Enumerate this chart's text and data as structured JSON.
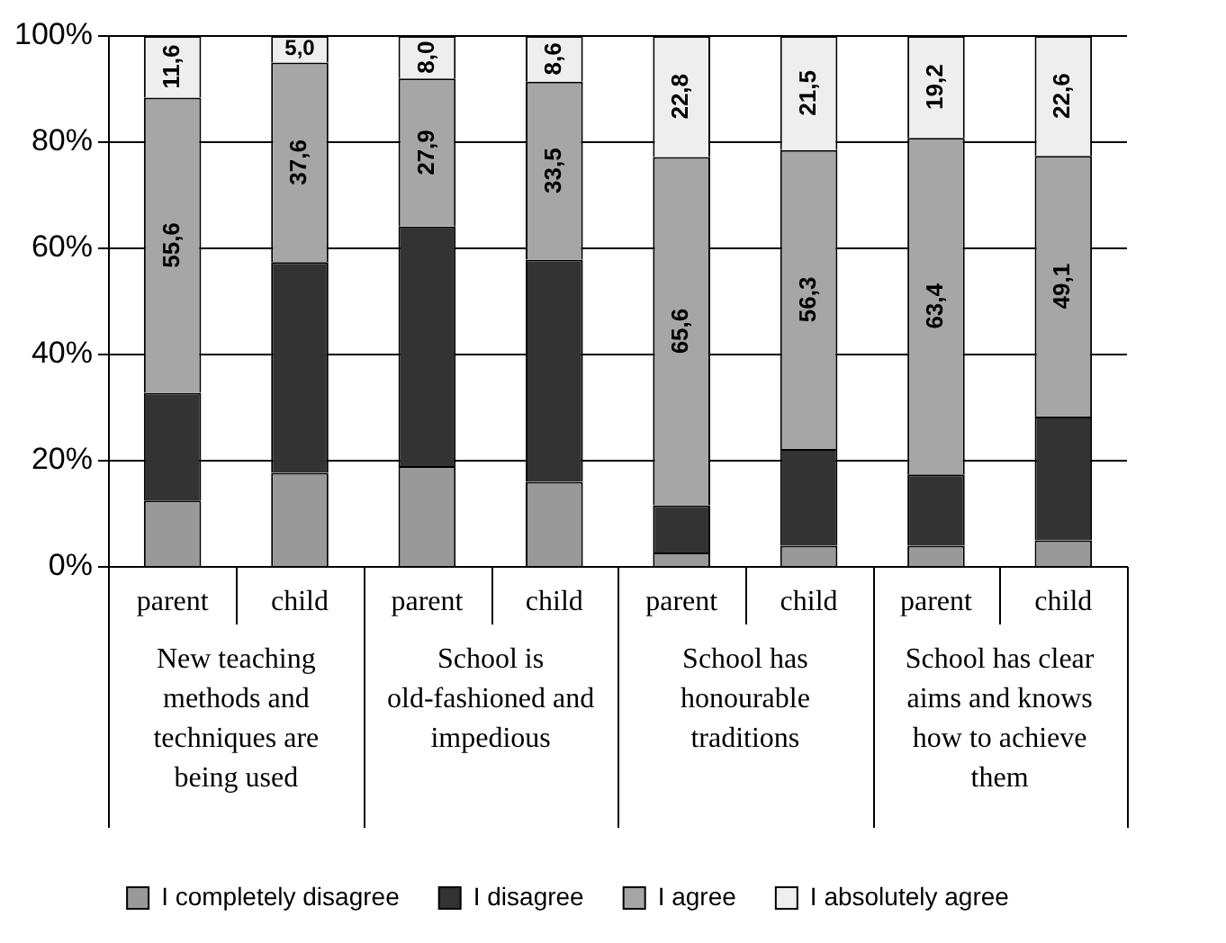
{
  "chart_data": {
    "type": "bar",
    "stacked": true,
    "categories": [
      "parent",
      "child",
      "parent",
      "child",
      "parent",
      "child",
      "parent",
      "child"
    ],
    "annotations": [
      "New teaching methods and techniques are being used",
      "School is old-fashioned and impedious",
      "School has honourable traditions",
      "School has clear aims and knows how to achieve them"
    ],
    "series": [
      {
        "name": "I completely disagree",
        "color": "#999999",
        "values": [
          12.5,
          17.7,
          19.0,
          16.0,
          2.7,
          4.0,
          4.0,
          5.0
        ]
      },
      {
        "name": "I disagree",
        "color": "#333333",
        "values": [
          20.3,
          39.7,
          45.1,
          41.9,
          8.9,
          18.2,
          13.4,
          23.3
        ]
      },
      {
        "name": "I agree",
        "color": "#a6a6a6",
        "values": [
          55.6,
          37.6,
          27.9,
          33.5,
          65.6,
          56.3,
          63.4,
          49.1
        ],
        "value_labels": [
          "55,6",
          "37,6",
          "27,9",
          "33,5",
          "65,6",
          "56,3",
          "63,4",
          "49,1"
        ]
      },
      {
        "name": "I absolutely agree",
        "color": "#eeeeee",
        "values": [
          11.6,
          5.0,
          8.0,
          8.6,
          22.8,
          21.5,
          19.2,
          22.6
        ],
        "value_labels": [
          "11,6",
          "5,0",
          "8,0",
          "8,6",
          "22,8",
          "21,5",
          "19,2",
          "22,6"
        ]
      }
    ],
    "ylim": [
      0,
      100
    ],
    "yticks": [
      {
        "value": 0,
        "label": "0%"
      },
      {
        "value": 20,
        "label": "20%"
      },
      {
        "value": 40,
        "label": "40%"
      },
      {
        "value": 60,
        "label": "60%"
      },
      {
        "value": 80,
        "label": "80%"
      },
      {
        "value": 100,
        "label": "100%"
      }
    ],
    "grid": "y",
    "legend": "bottom"
  }
}
